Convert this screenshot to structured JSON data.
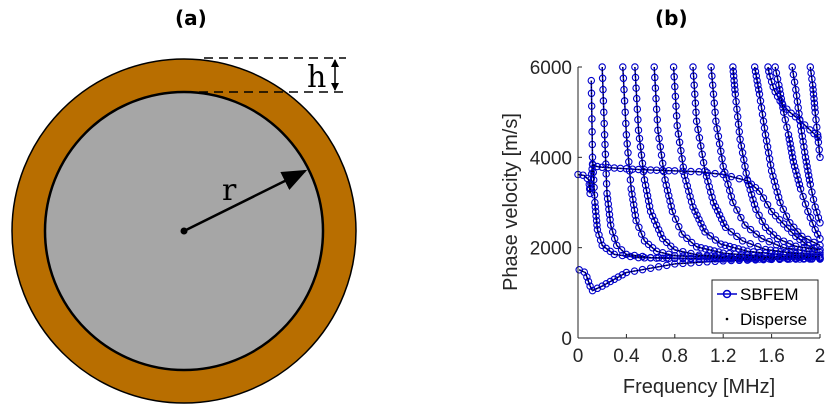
{
  "panels": {
    "a": {
      "label": "(a)",
      "symbol_h": "h",
      "symbol_r": "r",
      "colors": {
        "shell": "#b86e00",
        "core": "#a6a6a6",
        "line": "#000000"
      }
    },
    "b": {
      "label": "(b)"
    }
  },
  "chart_data": {
    "type": "scatter",
    "title": "",
    "xlabel": "Frequency [MHz]",
    "ylabel": "Phase velocity [m/s]",
    "xlim": [
      0,
      2
    ],
    "ylim": [
      0,
      6000
    ],
    "xticks": [
      "0",
      "0.4",
      "0.8",
      "1.2",
      "1.6",
      "2"
    ],
    "yticks": [
      "0",
      "2000",
      "4000",
      "6000"
    ],
    "grid": false,
    "legend": "bottom-right",
    "series": [
      {
        "name": "SBFEM",
        "marker": "open-circle",
        "color": "#0000cc"
      },
      {
        "name": "Disperse",
        "marker": "dot-line",
        "color": "#000000"
      }
    ],
    "modes": [
      {
        "id": "flexural-1",
        "x": [
          0.01,
          0.06,
          0.1,
          0.12,
          0.2,
          0.4,
          0.8,
          1.2,
          1.6,
          2.0
        ],
        "y": [
          1510,
          1450,
          1150,
          1050,
          1150,
          1450,
          1640,
          1710,
          1740,
          1760
        ]
      },
      {
        "id": "longitudinal",
        "x": [
          0.0,
          0.05,
          0.09,
          0.1,
          0.12,
          0.15,
          0.2,
          0.5,
          0.8,
          1.0,
          1.2,
          1.4,
          1.5,
          1.6,
          1.8,
          1.9,
          2.0
        ],
        "y": [
          3620,
          3600,
          3500,
          3200,
          3850,
          3800,
          3780,
          3730,
          3700,
          3680,
          3620,
          3480,
          3250,
          2800,
          2250,
          2050,
          1950
        ]
      },
      {
        "id": "m1",
        "x": [
          0.11,
          0.12,
          0.14,
          0.16,
          0.2,
          0.3,
          0.5,
          0.8,
          1.2,
          1.6,
          2.0
        ],
        "y": [
          5700,
          4000,
          3000,
          2400,
          2050,
          1850,
          1780,
          1760,
          1750,
          1750,
          1750
        ]
      },
      {
        "id": "m2",
        "x": [
          0.2,
          0.22,
          0.24,
          0.27,
          0.32,
          0.4,
          0.6,
          1.0,
          1.5,
          2.0
        ],
        "y": [
          6000,
          4500,
          3200,
          2500,
          2050,
          1850,
          1780,
          1760,
          1750,
          1750
        ]
      },
      {
        "id": "m3",
        "x": [
          0.37,
          0.4,
          0.44,
          0.48,
          0.55,
          0.65,
          0.8,
          1.2,
          1.6,
          2.0
        ],
        "y": [
          6000,
          4500,
          3300,
          2600,
          2150,
          1920,
          1820,
          1780,
          1770,
          1760
        ]
      },
      {
        "id": "m4",
        "x": [
          0.47,
          0.5,
          0.55,
          0.6,
          0.7,
          0.8,
          1.0,
          1.4,
          2.0
        ],
        "y": [
          6000,
          4600,
          3500,
          2800,
          2200,
          1950,
          1830,
          1790,
          1770
        ]
      },
      {
        "id": "m5",
        "x": [
          0.63,
          0.66,
          0.72,
          0.78,
          0.86,
          0.98,
          1.2,
          1.5,
          2.0
        ],
        "y": [
          6000,
          4600,
          3500,
          2800,
          2300,
          2020,
          1880,
          1810,
          1780
        ]
      },
      {
        "id": "m6",
        "x": [
          0.79,
          0.82,
          0.88,
          0.95,
          1.05,
          1.18,
          1.4,
          1.7,
          2.0
        ],
        "y": [
          6000,
          4700,
          3600,
          2900,
          2350,
          2080,
          1920,
          1840,
          1800
        ]
      },
      {
        "id": "m7",
        "x": [
          0.95,
          0.98,
          1.05,
          1.12,
          1.22,
          1.36,
          1.55,
          1.8,
          2.0
        ],
        "y": [
          6000,
          4800,
          3700,
          3000,
          2450,
          2150,
          1960,
          1870,
          1840
        ]
      },
      {
        "id": "m8",
        "x": [
          1.1,
          1.14,
          1.2,
          1.28,
          1.38,
          1.52,
          1.7,
          1.9,
          2.0
        ],
        "y": [
          6000,
          4800,
          3800,
          3000,
          2500,
          2200,
          2000,
          1920,
          1890
        ]
      },
      {
        "id": "m9",
        "x": [
          1.28,
          1.3,
          1.34,
          1.4,
          1.47,
          1.55,
          1.65,
          1.8,
          2.0
        ],
        "y": [
          6000,
          5400,
          4400,
          3500,
          2850,
          2450,
          2200,
          2030,
          1950
        ]
      },
      {
        "id": "m10",
        "x": [
          1.46,
          1.5,
          1.55,
          1.6,
          1.67,
          1.75,
          1.85,
          2.0
        ],
        "y": [
          6000,
          5400,
          4500,
          3700,
          3000,
          2550,
          2250,
          2050
        ]
      },
      {
        "id": "m11",
        "x": [
          1.57,
          1.58,
          1.62,
          1.68,
          1.75,
          1.82,
          1.9,
          2.0
        ],
        "y": [
          6000,
          5850,
          5500,
          5200,
          5000,
          4850,
          4650,
          4400
        ]
      },
      {
        "id": "m12",
        "x": [
          1.63,
          1.66,
          1.7,
          1.74,
          1.78,
          1.84,
          1.9,
          1.96,
          2.0
        ],
        "y": [
          6000,
          5600,
          5000,
          4500,
          3900,
          3300,
          2800,
          2400,
          2200
        ]
      },
      {
        "id": "m13",
        "x": [
          1.77,
          1.8,
          1.84,
          1.88,
          1.92,
          1.96,
          2.0
        ],
        "y": [
          6000,
          5500,
          4700,
          4000,
          3400,
          2900,
          2550
        ]
      },
      {
        "id": "m14",
        "x": [
          1.92,
          1.94,
          1.96,
          1.98,
          2.0
        ],
        "y": [
          6000,
          5600,
          5000,
          4500,
          4000
        ]
      }
    ]
  }
}
